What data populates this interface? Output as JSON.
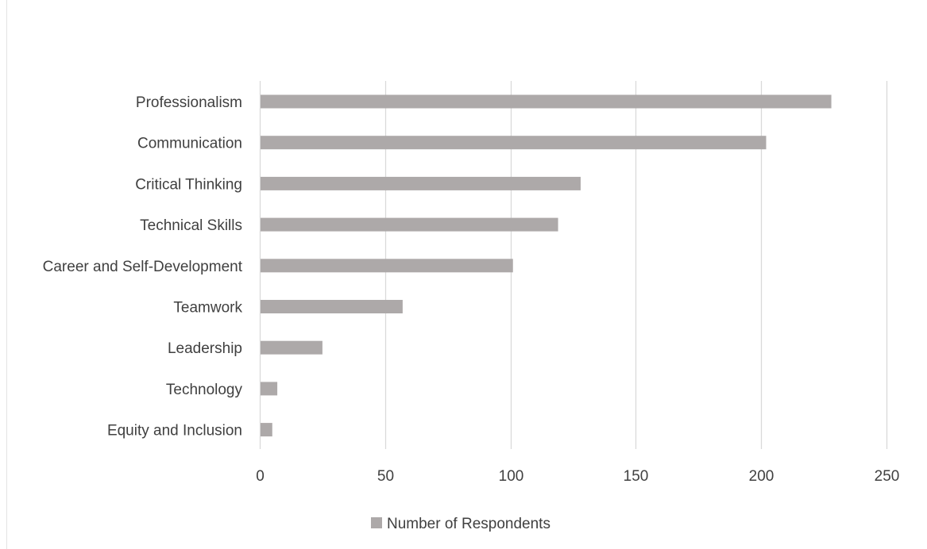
{
  "chart_data": {
    "type": "bar",
    "orientation": "horizontal",
    "title": "",
    "xlabel": "",
    "ylabel": "",
    "categories": [
      "Professionalism",
      "Communication",
      "Critical Thinking",
      "Technical Skills",
      "Career and Self-Development",
      "Teamwork",
      "Leadership",
      "Technology",
      "Equity and Inclusion"
    ],
    "series": [
      {
        "name": "Number of Respondents",
        "values": [
          228,
          202,
          128,
          119,
          101,
          57,
          25,
          7,
          5
        ]
      }
    ],
    "xlim": [
      0,
      250
    ],
    "xticks": [
      0,
      50,
      100,
      150,
      200,
      250
    ],
    "grid": "vertical",
    "legend_position": "bottom",
    "colors": {
      "bar": "#ada9a9",
      "grid": "#d9d9d9",
      "text": "#404040"
    }
  }
}
